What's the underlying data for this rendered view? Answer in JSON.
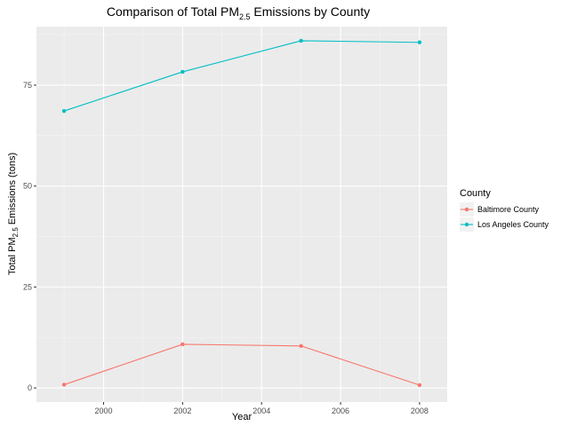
{
  "chart_data": {
    "type": "line",
    "title": {
      "prefix": "Comparison of Total PM",
      "subscript": "2.5",
      "suffix": " Emissions by County"
    },
    "xlabel": "Year",
    "ylabel": {
      "prefix": "Total PM",
      "subscript": "2.5",
      "suffix": " Emissions (tons)"
    },
    "x": [
      1999,
      2002,
      2005,
      2008
    ],
    "xlim": [
      1998.3,
      2008.7
    ],
    "ylim": [
      -3.5,
      89.5
    ],
    "x_ticks": [
      2000,
      2002,
      2004,
      2006,
      2008
    ],
    "x_tick_labels": [
      "2000",
      "2002",
      "2004",
      "2006",
      "2008"
    ],
    "y_ticks": [
      0,
      25,
      50,
      75
    ],
    "y_tick_labels": [
      "0",
      "25",
      "50",
      "75"
    ],
    "grid": true,
    "legend": {
      "title": "County",
      "position": "right"
    },
    "series": [
      {
        "name": "Baltimore County",
        "color": "#F8766D",
        "values": [
          0.8,
          10.8,
          10.4,
          0.7
        ]
      },
      {
        "name": "Los Angeles County",
        "color": "#00BFC4",
        "values": [
          68.6,
          78.3,
          86.0,
          85.6
        ]
      }
    ]
  }
}
